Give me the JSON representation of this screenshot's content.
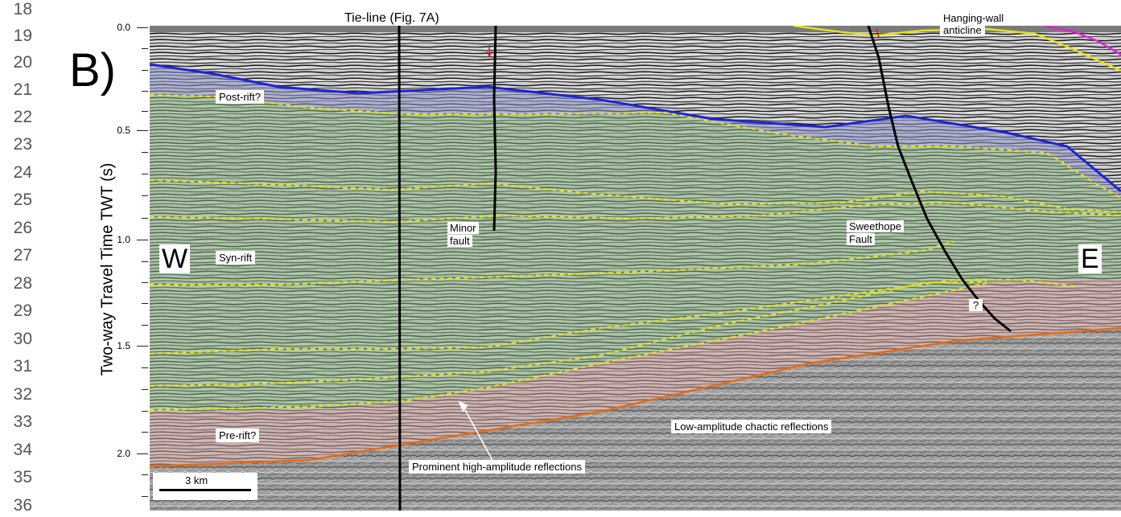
{
  "line_numbers": [
    "18",
    "19",
    "20",
    "21",
    "22",
    "23",
    "24",
    "25",
    "26",
    "27",
    "28",
    "29",
    "30",
    "31",
    "32",
    "33",
    "34",
    "35",
    "36"
  ],
  "panel_letter": "B)",
  "y_axis": {
    "title": "Two-way Travel Time TWT (s)",
    "ticks": [
      "0.0",
      "0.5",
      "1.0",
      "1.5",
      "2.0"
    ]
  },
  "annotations": {
    "tie_line": "Tie-line (Fig. 7A)",
    "hanging_wall_1": "Hanging-wall",
    "hanging_wall_2": "anticline",
    "post_rift": "Post-rift?",
    "syn_rift": "Syn-rift",
    "pre_rift": "Pre-rift?",
    "minor_fault_1": "Minor",
    "minor_fault_2": "fault",
    "sweethope_1": "Sweethope",
    "sweethope_2": "Fault",
    "question": "?",
    "west": "W",
    "east": "E",
    "low_amplitude": "Low-amplitude chactic reflections",
    "prominent": "Prominent high-amplitude reflections",
    "scale_bar": "3 km"
  },
  "colors": {
    "post_rift_fill": "#8e95c8",
    "syn_rift_fill": "#86b27e",
    "pre_rift_fill": "#c79a98",
    "seismic_base": "#8d8d8d",
    "blue_horizon": "#1e24d6",
    "yellow_horizon": "#e4e21a",
    "orange_horizon": "#e66b14",
    "magenta_horizon": "#e020d8",
    "fault": "#000000",
    "arrow_red": "#d42020"
  }
}
